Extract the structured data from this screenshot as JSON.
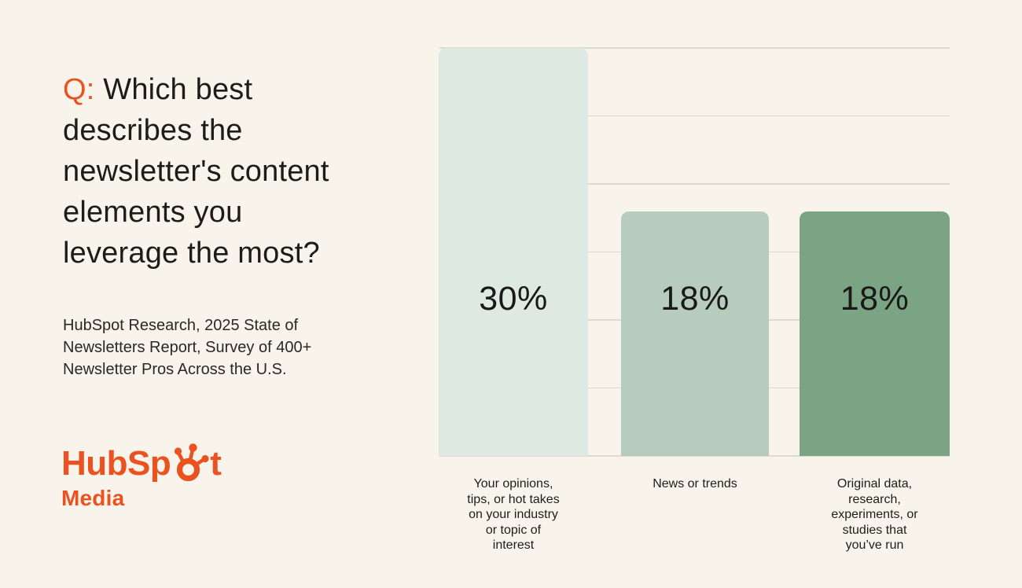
{
  "question": {
    "prefix": "Q:",
    "text": " Which best describes the newsletter's content elements you leverage the most?"
  },
  "source": {
    "text": "HubSpot Research, 2025 State of Newsletters Report, Survey of 400+ Newsletter Pros Across the U.S."
  },
  "logo": {
    "brand": "HubSpot",
    "word_start": "HubSp",
    "word_end": "t",
    "subbrand": "Media"
  },
  "colors": {
    "background": "#f8f4ec",
    "accent_orange": "#ea5220",
    "text_dark": "#1e1c18",
    "gridline": "#ded9cf",
    "value_label": "#191919"
  },
  "chart_data": {
    "type": "bar",
    "title": "",
    "xlabel": "",
    "ylabel": "",
    "categories": [
      "Your opinions, tips, or hot takes on your industry or topic of interest",
      "News or trends",
      "Original data, research, experiments, or studies that you've run"
    ],
    "tick_lines": [
      [
        "Your opinions,",
        "tips, or hot takes",
        "on your industry",
        "or topic of",
        "interest"
      ],
      [
        "News or trends"
      ],
      [
        "Original data,",
        "research,",
        "experiments, or",
        "studies that",
        "you’ve run"
      ]
    ],
    "values": [
      30,
      18,
      18
    ],
    "value_labels": [
      "30%",
      "18%",
      "18%"
    ],
    "bar_colors": [
      "#dfe9e4",
      "#b7ccbd",
      "#7aa483"
    ],
    "ylim": [
      0,
      30
    ],
    "gridline_step": 5,
    "grid": true,
    "legend": false
  }
}
